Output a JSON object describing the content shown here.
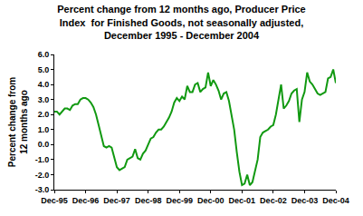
{
  "chart_data": {
    "type": "line",
    "title": "Percent change from 12 months ago, Producer Price\nIndex  for Finished Goods, not seasonally adjusted,\nDecember 1995 - December 2004",
    "y_label": "Percent change from\n12 months ago",
    "categories": [
      "Dec-95",
      null,
      null,
      null,
      null,
      null,
      null,
      null,
      null,
      null,
      null,
      null,
      "Dec-96",
      null,
      null,
      null,
      null,
      null,
      null,
      null,
      null,
      null,
      null,
      null,
      "Dec-97",
      null,
      null,
      null,
      null,
      null,
      null,
      null,
      null,
      null,
      null,
      null,
      "Dec-98",
      null,
      null,
      null,
      null,
      null,
      null,
      null,
      null,
      null,
      null,
      null,
      "Dec-99",
      null,
      null,
      null,
      null,
      null,
      null,
      null,
      null,
      null,
      null,
      null,
      "Dec-00",
      null,
      null,
      null,
      null,
      null,
      null,
      null,
      null,
      null,
      null,
      null,
      "Dec-01",
      null,
      null,
      null,
      null,
      null,
      null,
      null,
      null,
      null,
      null,
      null,
      "Dec-02",
      null,
      null,
      null,
      null,
      null,
      null,
      null,
      null,
      null,
      null,
      null,
      "Dec-03",
      null,
      null,
      null,
      null,
      null,
      null,
      null,
      null,
      null,
      null,
      null,
      "Dec-04"
    ],
    "values": [
      2.2,
      2.2,
      2.0,
      2.2,
      2.4,
      2.4,
      2.3,
      2.6,
      2.7,
      2.7,
      3.0,
      3.1,
      3.1,
      3.0,
      2.8,
      2.5,
      2.0,
      1.3,
      0.6,
      -0.1,
      -0.2,
      -0.1,
      -0.2,
      -0.9,
      -1.5,
      -1.7,
      -1.6,
      -1.5,
      -1.0,
      -0.9,
      -0.8,
      -0.3,
      -0.9,
      -1.0,
      -0.6,
      -0.4,
      0.0,
      0.4,
      0.5,
      0.8,
      1.0,
      1.0,
      1.2,
      1.5,
      1.8,
      2.2,
      2.8,
      3.1,
      2.9,
      3.2,
      3.0,
      3.9,
      3.5,
      3.5,
      4.0,
      4.1,
      3.5,
      3.7,
      3.8,
      4.8,
      3.9,
      4.3,
      4.0,
      3.6,
      3.0,
      3.4,
      3.5,
      2.9,
      2.0,
      1.0,
      -0.5,
      -1.8,
      -2.7,
      -2.6,
      -2.0,
      -2.7,
      -2.5,
      -1.8,
      -1.0,
      0.5,
      0.8,
      0.9,
      1.0,
      1.2,
      1.3,
      2.0,
      3.0,
      4.0,
      2.4,
      2.6,
      2.9,
      3.4,
      3.6,
      3.7,
      1.5,
      3.0,
      3.5,
      4.8,
      4.2,
      4.0,
      3.7,
      3.4,
      3.3,
      3.4,
      3.5,
      4.4,
      4.5,
      5.0,
      4.1
    ],
    "color": "#119911",
    "ylim": [
      -3,
      6
    ],
    "yticks": [
      {
        "value": -3,
        "label": "-3.0"
      },
      {
        "value": -2,
        "label": "-2.0"
      },
      {
        "value": -1,
        "label": "-1.0"
      },
      {
        "value": 0,
        "label": "0.0"
      },
      {
        "value": 1,
        "label": "1.0"
      },
      {
        "value": 2,
        "label": "2.0"
      },
      {
        "value": 3,
        "label": "3.0"
      },
      {
        "value": 4,
        "label": "4.0"
      },
      {
        "value": 5,
        "label": "5.0"
      },
      {
        "value": 6,
        "label": "6.0"
      }
    ],
    "grid": false
  }
}
